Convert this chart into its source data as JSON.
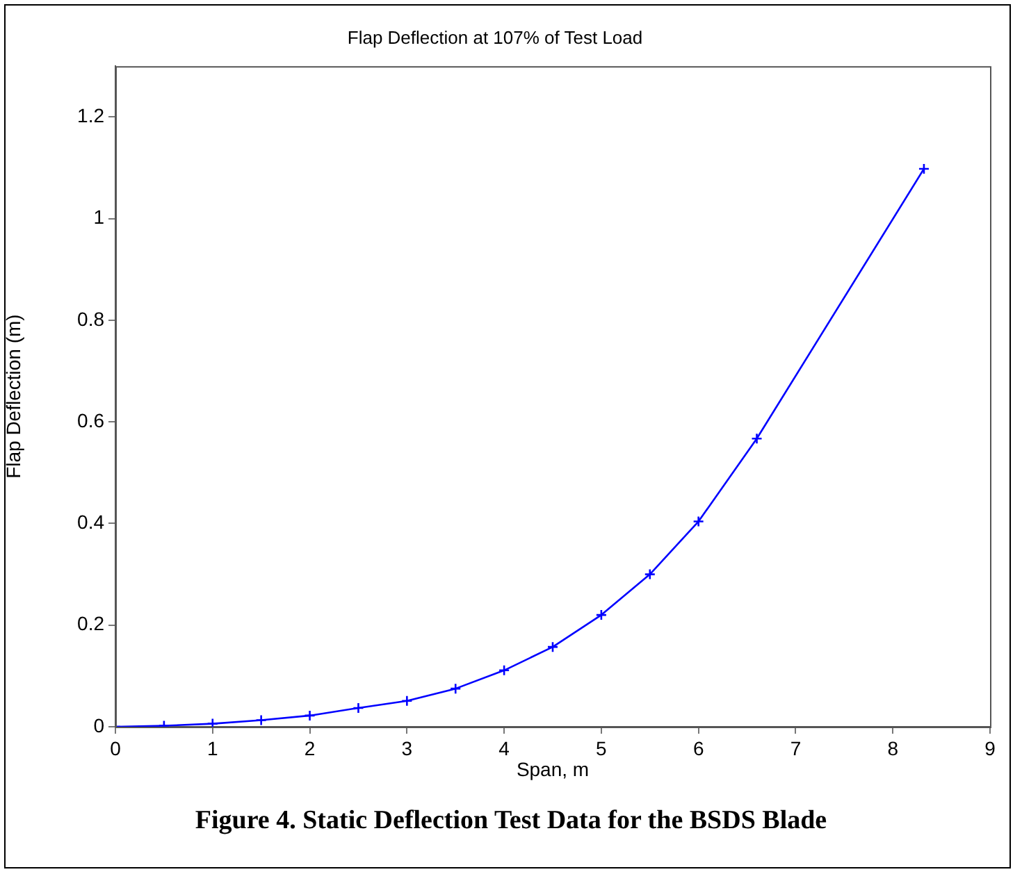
{
  "chart_data": {
    "type": "line",
    "title": "Flap Deflection at 107% of Test Load",
    "xlabel": "Span, m",
    "ylabel": "Flap Deflection (m)",
    "x": [
      0,
      0.5,
      1,
      1.5,
      2,
      2.5,
      3,
      3.5,
      4,
      4.5,
      5,
      5.5,
      6,
      6.6,
      8.32
    ],
    "series": [
      {
        "color": "#0000ff",
        "values": [
          0,
          0.002,
          0.006,
          0.013,
          0.022,
          0.037,
          0.051,
          0.075,
          0.111,
          0.157,
          0.22,
          0.3,
          0.404,
          0.567,
          1.098
        ]
      }
    ],
    "xlim": [
      0,
      9
    ],
    "xticks": [
      0,
      1,
      2,
      3,
      4,
      5,
      6,
      7,
      8,
      9
    ],
    "ylim": [
      0,
      1.3
    ],
    "yticks": [
      0,
      0.2,
      0.4,
      0.6,
      0.8,
      1,
      1.2
    ],
    "grid": false,
    "legend": false,
    "marker": "cross",
    "line_style": "solid",
    "annotations": [
      "Figure 4.  Static Deflection Test Data for the BSDS Blade"
    ]
  }
}
